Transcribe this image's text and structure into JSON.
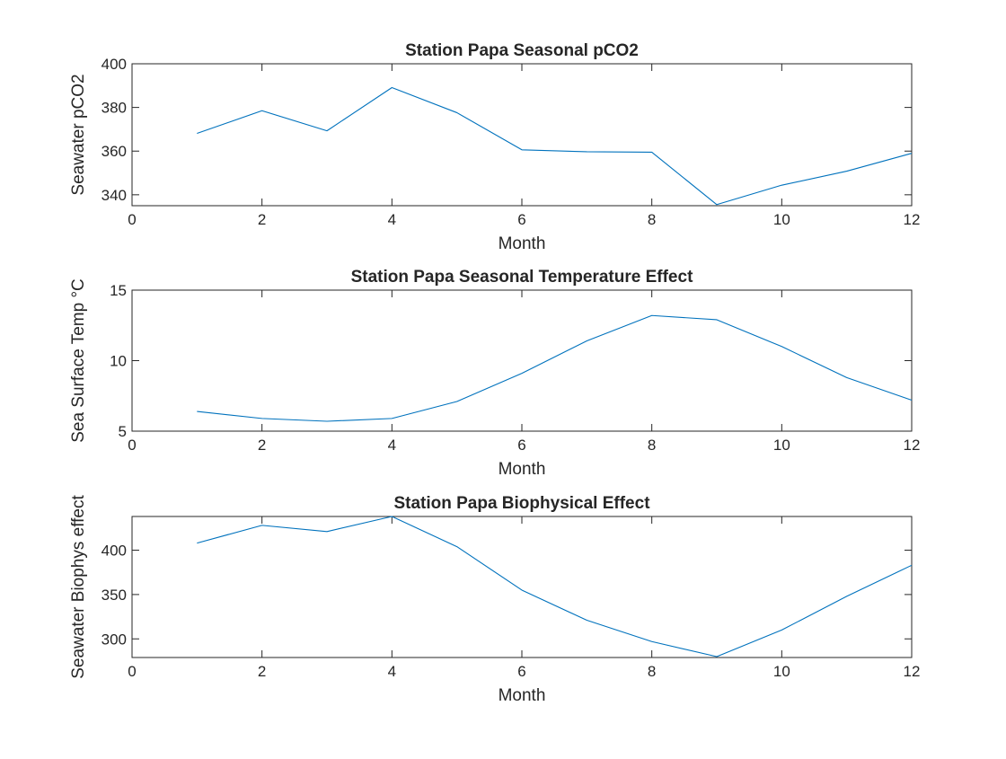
{
  "chart_data": [
    {
      "type": "line",
      "title": "Station Papa Seasonal pCO2",
      "xlabel": "Month",
      "ylabel": "Seawater pCO2",
      "xlim": [
        0,
        12
      ],
      "ylim": [
        335,
        400
      ],
      "xticks": [
        0,
        2,
        4,
        6,
        8,
        10,
        12
      ],
      "yticks": [
        340,
        360,
        380,
        400
      ],
      "grid": false,
      "color": "#0072BD",
      "series": [
        {
          "x": [
            1,
            2,
            3,
            4,
            5,
            6,
            7,
            8,
            9,
            10,
            11,
            12
          ],
          "y": [
            368.1,
            378.5,
            369.3,
            389.1,
            377.6,
            360.6,
            359.7,
            359.5,
            335.5,
            344.4,
            350.8,
            359.0
          ]
        }
      ]
    },
    {
      "type": "line",
      "title": "Station Papa Seasonal Temperature Effect",
      "xlabel": "Month",
      "ylabel": "Sea Surface Temp °C",
      "xlim": [
        0,
        12
      ],
      "ylim": [
        5,
        15
      ],
      "xticks": [
        0,
        2,
        4,
        6,
        8,
        10,
        12
      ],
      "yticks": [
        5,
        10,
        15
      ],
      "grid": false,
      "color": "#0072BD",
      "series": [
        {
          "x": [
            1,
            2,
            3,
            4,
            5,
            6,
            7,
            8,
            9,
            10,
            11,
            12
          ],
          "y": [
            6.4,
            5.9,
            5.7,
            5.9,
            7.1,
            9.1,
            11.4,
            13.2,
            12.9,
            11.0,
            8.8,
            7.2
          ]
        }
      ]
    },
    {
      "type": "line",
      "title": "Station Papa Biophysical Effect",
      "xlabel": "Month",
      "ylabel": "Seawater Biophys effect",
      "xlim": [
        0,
        12
      ],
      "ylim": [
        279,
        438
      ],
      "xticks": [
        0,
        2,
        4,
        6,
        8,
        10,
        12
      ],
      "yticks": [
        300,
        350,
        400
      ],
      "grid": false,
      "color": "#0072BD",
      "series": [
        {
          "x": [
            1,
            2,
            3,
            4,
            5,
            6,
            7,
            8,
            9,
            10,
            11,
            12
          ],
          "y": [
            408,
            428,
            421,
            438,
            404,
            355,
            321,
            297,
            280,
            310,
            348,
            383
          ]
        }
      ]
    }
  ]
}
